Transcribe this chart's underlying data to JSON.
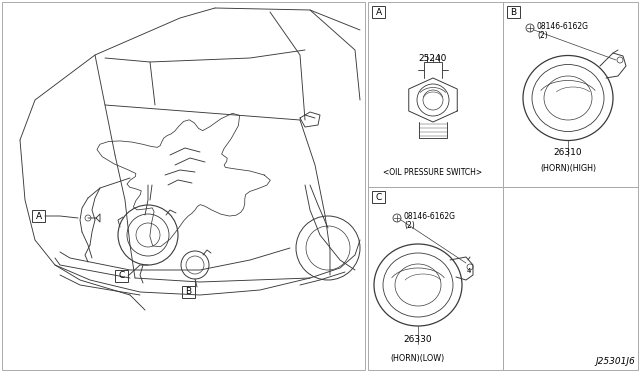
{
  "bg_color": "#ffffff",
  "line_color": "#3a3a3a",
  "border_color": "#555555",
  "fig_width": 6.4,
  "fig_height": 3.72,
  "dpi": 100,
  "diagram_code": "J25301J6",
  "part_A_num": "25240",
  "part_A_label": "<OIL PRESSURE SWITCH>",
  "part_B_num": "26310",
  "part_B_label": "(HORN)(HIGH)",
  "part_B_bolt": "08146-6162G",
  "part_C_num": "26330",
  "part_C_label": "(HORN)(LOW)",
  "part_C_bolt": "08146-6162G",
  "bolt_qty": "(2)"
}
